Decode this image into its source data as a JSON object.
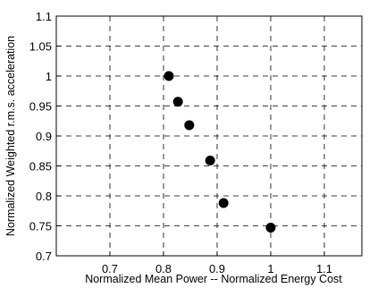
{
  "chart_data": {
    "type": "scatter",
    "xlabel": "Normalized Mean Power -- Normalized Energy Cost",
    "ylabel": "Normalized Weighted r.m.s. acceleration",
    "xlim": [
      0.6,
      1.17
    ],
    "ylim": [
      0.7,
      1.1
    ],
    "x_ticks": [
      "0.7",
      "0.8",
      "0.9",
      "1",
      "1.1"
    ],
    "y_ticks": [
      "0.7",
      "0.75",
      "0.8",
      "0.85",
      "0.9",
      "0.95",
      "1",
      "1.05",
      "1.1"
    ],
    "grid": true,
    "grid_style": "dashed",
    "marker_color": "#000000",
    "points": [
      {
        "x": 0.81,
        "y": 1.0
      },
      {
        "x": 0.827,
        "y": 0.957
      },
      {
        "x": 0.848,
        "y": 0.918
      },
      {
        "x": 0.887,
        "y": 0.859
      },
      {
        "x": 0.912,
        "y": 0.788
      },
      {
        "x": 1.0,
        "y": 0.747
      }
    ]
  }
}
